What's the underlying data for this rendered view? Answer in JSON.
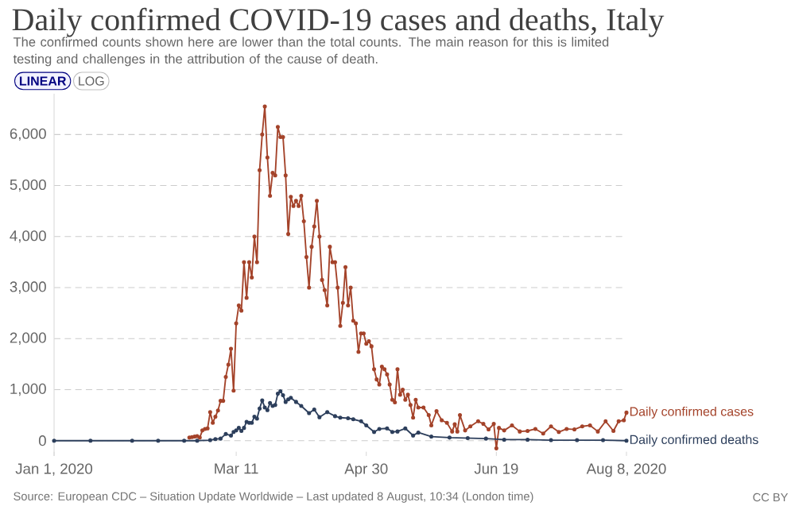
{
  "chart_data": {
    "type": "line",
    "title": "Daily confirmed COVID-19 cases and deaths, Italy",
    "subtitle": "The confirmed counts shown here are lower than the total counts. The main reason for this is limited testing and challenges in the attribution of the cause of death.",
    "annotations": [
      "LINEAR",
      "LOG",
      "Source: European CDC – Situation Update Worldwide – Last updated 8 August, 10:34 (London time)",
      "CC BY"
    ],
    "xlim": [
      "2020-01-01",
      "2020-08-08"
    ],
    "xticks": [
      {
        "value": "2020-01-01",
        "label": "Jan 1, 2020"
      },
      {
        "value": "2020-03-11",
        "label": "Mar 11"
      },
      {
        "value": "2020-04-30",
        "label": "Apr 30"
      },
      {
        "value": "2020-06-19",
        "label": "Jun 19"
      },
      {
        "value": "2020-08-08",
        "label": "Aug 8, 2020"
      }
    ],
    "ylim": [
      -300,
      6800
    ],
    "yticks": [
      {
        "value": 0,
        "label": "0"
      },
      {
        "value": 1000,
        "label": "1,000"
      },
      {
        "value": 2000,
        "label": "2,000"
      },
      {
        "value": 3000,
        "label": "3,000"
      },
      {
        "value": 4000,
        "label": "4,000"
      },
      {
        "value": 5000,
        "label": "5,000"
      },
      {
        "value": 6000,
        "label": "6,000"
      }
    ],
    "grid": "y",
    "legend": false,
    "marker": "circle",
    "line_style": "solid",
    "series": [
      {
        "name": "Daily confirmed cases",
        "color": "#a4432a",
        "x": [
          "2020-02-22",
          "2020-02-23",
          "2020-02-24",
          "2020-02-25",
          "2020-02-26",
          "2020-02-27",
          "2020-02-28",
          "2020-02-29",
          "2020-03-01",
          "2020-03-02",
          "2020-03-03",
          "2020-03-04",
          "2020-03-05",
          "2020-03-06",
          "2020-03-07",
          "2020-03-08",
          "2020-03-09",
          "2020-03-10",
          "2020-03-11",
          "2020-03-12",
          "2020-03-13",
          "2020-03-14",
          "2020-03-15",
          "2020-03-16",
          "2020-03-17",
          "2020-03-18",
          "2020-03-19",
          "2020-03-20",
          "2020-03-21",
          "2020-03-22",
          "2020-03-23",
          "2020-03-24",
          "2020-03-25",
          "2020-03-26",
          "2020-03-27",
          "2020-03-28",
          "2020-03-29",
          "2020-03-30",
          "2020-03-31",
          "2020-04-01",
          "2020-04-02",
          "2020-04-03",
          "2020-04-04",
          "2020-04-05",
          "2020-04-06",
          "2020-04-07",
          "2020-04-08",
          "2020-04-09",
          "2020-04-10",
          "2020-04-11",
          "2020-04-12",
          "2020-04-13",
          "2020-04-14",
          "2020-04-15",
          "2020-04-16",
          "2020-04-17",
          "2020-04-18",
          "2020-04-19",
          "2020-04-20",
          "2020-04-21",
          "2020-04-22",
          "2020-04-23",
          "2020-04-24",
          "2020-04-25",
          "2020-04-26",
          "2020-04-27",
          "2020-04-28",
          "2020-04-29",
          "2020-04-30",
          "2020-05-01",
          "2020-05-02",
          "2020-05-03",
          "2020-05-04",
          "2020-05-05",
          "2020-05-06",
          "2020-05-07",
          "2020-05-08",
          "2020-05-09",
          "2020-05-10",
          "2020-05-11",
          "2020-05-12",
          "2020-05-13",
          "2020-05-14",
          "2020-05-15",
          "2020-05-16",
          "2020-05-17",
          "2020-05-18",
          "2020-05-19",
          "2020-05-20",
          "2020-05-22",
          "2020-05-24",
          "2020-05-25",
          "2020-05-27",
          "2020-05-29",
          "2020-05-31",
          "2020-06-02",
          "2020-06-03",
          "2020-06-04",
          "2020-06-05",
          "2020-06-07",
          "2020-06-09",
          "2020-06-12",
          "2020-06-14",
          "2020-06-16",
          "2020-06-18",
          "2020-06-19",
          "2020-06-20",
          "2020-06-22",
          "2020-06-25",
          "2020-06-28",
          "2020-07-01",
          "2020-07-04",
          "2020-07-07",
          "2020-07-10",
          "2020-07-13",
          "2020-07-16",
          "2020-07-19",
          "2020-07-22",
          "2020-07-25",
          "2020-07-28",
          "2020-07-31",
          "2020-08-03",
          "2020-08-05",
          "2020-08-07",
          "2020-08-08"
        ],
        "values": [
          60,
          70,
          80,
          90,
          60,
          200,
          230,
          240,
          560,
          350,
          470,
          590,
          780,
          780,
          1250,
          1490,
          1800,
          980,
          2300,
          2650,
          2550,
          3500,
          2800,
          3500,
          3200,
          4000,
          3500,
          5300,
          6000,
          6550,
          5550,
          4800,
          5250,
          5200,
          6150,
          5950,
          5950,
          5200,
          4050,
          4780,
          4600,
          4700,
          4600,
          4800,
          4300,
          3600,
          3000,
          3800,
          4200,
          4700,
          4000,
          3150,
          2950,
          2650,
          3800,
          3500,
          3500,
          3000,
          2250,
          2700,
          3400,
          2650,
          3000,
          2350,
          2300,
          1740,
          2100,
          2100,
          1900,
          1950,
          1850,
          1400,
          1200,
          1100,
          1450,
          1400,
          1300,
          1100,
          800,
          750,
          1400,
          900,
          1000,
          800,
          900,
          700,
          450,
          800,
          650,
          650,
          500,
          300,
          580,
          400,
          350,
          180,
          320,
          180,
          500,
          200,
          280,
          380,
          330,
          220,
          330,
          -150,
          250,
          200,
          300,
          180,
          190,
          230,
          140,
          280,
          170,
          230,
          220,
          280,
          300,
          180,
          380,
          190,
          380,
          400,
          550
        ]
      },
      {
        "name": "Daily confirmed deaths",
        "color": "#2d3f5c",
        "x": [
          "2020-01-01",
          "2020-01-15",
          "2020-01-31",
          "2020-02-10",
          "2020-02-20",
          "2020-02-25",
          "2020-03-01",
          "2020-03-03",
          "2020-03-05",
          "2020-03-07",
          "2020-03-09",
          "2020-03-10",
          "2020-03-11",
          "2020-03-12",
          "2020-03-13",
          "2020-03-14",
          "2020-03-15",
          "2020-03-16",
          "2020-03-17",
          "2020-03-18",
          "2020-03-19",
          "2020-03-20",
          "2020-03-21",
          "2020-03-22",
          "2020-03-23",
          "2020-03-24",
          "2020-03-25",
          "2020-03-26",
          "2020-03-27",
          "2020-03-28",
          "2020-03-29",
          "2020-03-30",
          "2020-03-31",
          "2020-04-01",
          "2020-04-03",
          "2020-04-05",
          "2020-04-08",
          "2020-04-10",
          "2020-04-12",
          "2020-04-15",
          "2020-04-18",
          "2020-04-20",
          "2020-04-23",
          "2020-04-25",
          "2020-04-28",
          "2020-04-30",
          "2020-05-03",
          "2020-05-05",
          "2020-05-08",
          "2020-05-10",
          "2020-05-12",
          "2020-05-15",
          "2020-05-18",
          "2020-05-20",
          "2020-05-25",
          "2020-06-01",
          "2020-06-08",
          "2020-06-15",
          "2020-06-22",
          "2020-07-01",
          "2020-07-10",
          "2020-07-20",
          "2020-07-30",
          "2020-08-08"
        ],
        "values": [
          0,
          0,
          0,
          0,
          0,
          0,
          10,
          30,
          40,
          130,
          100,
          170,
          200,
          250,
          190,
          250,
          370,
          350,
          350,
          470,
          430,
          630,
          790,
          650,
          600,
          740,
          680,
          700,
          920,
          970,
          890,
          760,
          810,
          840,
          760,
          680,
          540,
          610,
          460,
          560,
          480,
          450,
          440,
          420,
          380,
          300,
          170,
          230,
          240,
          170,
          180,
          240,
          100,
          160,
          80,
          60,
          50,
          40,
          20,
          20,
          10,
          10,
          10,
          0
        ]
      }
    ]
  }
}
